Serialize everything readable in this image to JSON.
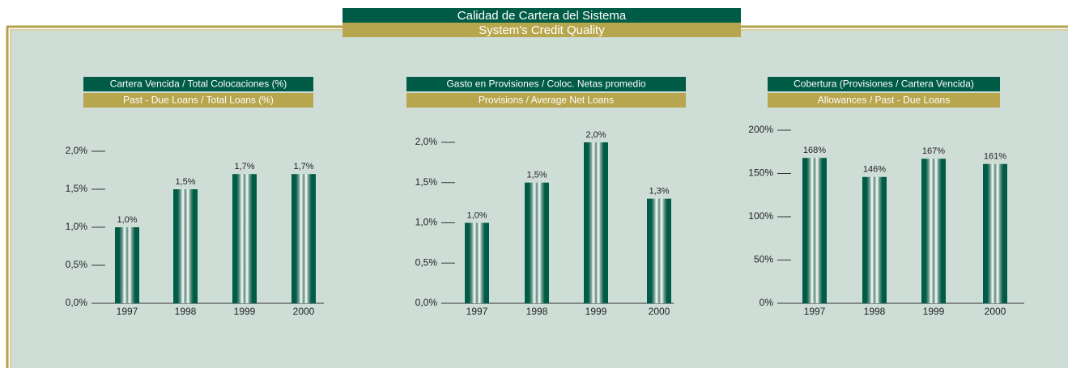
{
  "header": {
    "title": "Calidad de Cartera del Sistema",
    "subtitle": "System's Credit Quality"
  },
  "chart_data": [
    {
      "type": "bar",
      "title": "Cartera Vencida / Total Colocaciones (%)",
      "subtitle": "Past - Due Loans / Total Loans (%)",
      "categories": [
        "1997",
        "1998",
        "1999",
        "2000"
      ],
      "values": [
        1.0,
        1.5,
        1.7,
        1.7
      ],
      "value_labels": [
        "1,0%",
        "1,5%",
        "1,7%",
        "1,7%"
      ],
      "color": "#005c46",
      "ylim": [
        0,
        2
      ],
      "yticks": [
        {
          "value": 0,
          "label": "0,0%"
        },
        {
          "value": 0.5,
          "label": "0,5%"
        },
        {
          "value": 1,
          "label": "1,0%"
        },
        {
          "value": 1.5,
          "label": "1,5%"
        },
        {
          "value": 2,
          "label": "2,0%"
        }
      ]
    },
    {
      "type": "bar",
      "title": "Gasto en Provisiones / Coloc. Netas promedio",
      "subtitle": "Provisions / Average Net Loans",
      "categories": [
        "1997",
        "1998",
        "1999",
        "2000"
      ],
      "values": [
        1.0,
        1.5,
        2.0,
        1.3
      ],
      "value_labels": [
        "1,0%",
        "1,5%",
        "2,0%",
        "1,3%"
      ],
      "color": "#005c46",
      "ylim": [
        0,
        2
      ],
      "yticks": [
        {
          "value": 0,
          "label": "0,0%"
        },
        {
          "value": 0.5,
          "label": "0,5%"
        },
        {
          "value": 1,
          "label": "1,0%"
        },
        {
          "value": 1.5,
          "label": "1,5%"
        },
        {
          "value": 2,
          "label": "2,0%"
        }
      ]
    },
    {
      "type": "bar",
      "title": "Cobertura (Provisiones / Cartera Vencida)",
      "subtitle": "Allowances / Past - Due Loans",
      "categories": [
        "1997",
        "1998",
        "1999",
        "2000"
      ],
      "values": [
        168,
        146,
        167,
        161
      ],
      "value_labels": [
        "168%",
        "146%",
        "167%",
        "161%"
      ],
      "color": "#005c46",
      "ylim": [
        0,
        200
      ],
      "yticks": [
        {
          "value": 0,
          "label": "0%"
        },
        {
          "value": 50,
          "label": "50%"
        },
        {
          "value": 100,
          "label": "100%"
        },
        {
          "value": 150,
          "label": "150%"
        },
        {
          "value": 200,
          "label": "200%"
        }
      ]
    }
  ]
}
